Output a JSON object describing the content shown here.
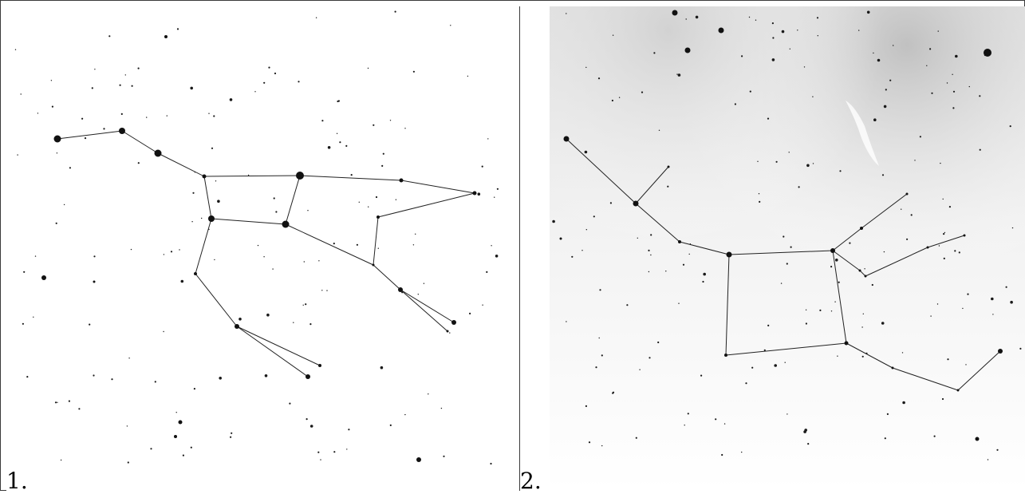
{
  "panels": [
    {
      "label": "1."
    },
    {
      "label": "2."
    }
  ]
}
